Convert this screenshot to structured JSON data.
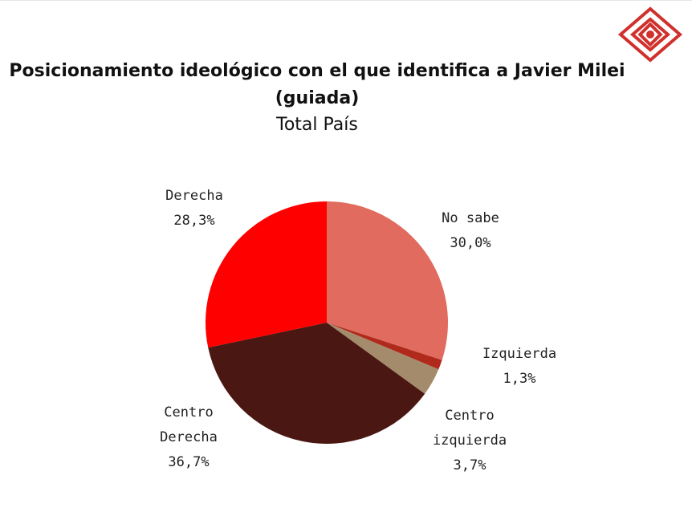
{
  "logo": {
    "icon": "diamond-logo-icon",
    "color": "#d0312d"
  },
  "chart_data": {
    "type": "pie",
    "title": "Posicionamiento ideológico con el que identifica a Javier Milei (guiada)",
    "subtitle": "Total País",
    "slices": [
      {
        "label": "No sabe",
        "label_lines": [
          "No sabe"
        ],
        "value": 30.0,
        "value_text": "30,0%",
        "color": "#e06b5e"
      },
      {
        "label": "Izquierda",
        "label_lines": [
          "Izquierda"
        ],
        "value": 1.3,
        "value_text": "1,3%",
        "color": "#b02a1c"
      },
      {
        "label": "Centro izquierda",
        "label_lines": [
          "Centro",
          "izquierda"
        ],
        "value": 3.7,
        "value_text": "3,7%",
        "color": "#a48b6c"
      },
      {
        "label": "Centro Derecha",
        "label_lines": [
          "Centro",
          "Derecha"
        ],
        "value": 36.7,
        "value_text": "36,7%",
        "color": "#4a1712"
      },
      {
        "label": "Derecha",
        "label_lines": [
          "Derecha"
        ],
        "value": 28.3,
        "value_text": "28,3%",
        "color": "#ff0000"
      }
    ]
  }
}
